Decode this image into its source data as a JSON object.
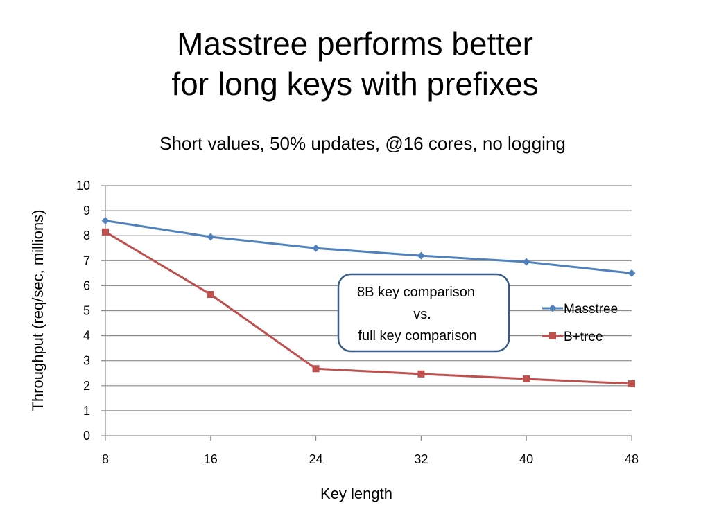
{
  "slide": {
    "title_line1": "Masstree performs better",
    "title_line2": "for long keys with prefixes"
  },
  "chart_data": {
    "type": "line",
    "title": "Short values, 50% updates, @16 cores, no logging",
    "xlabel": "Key length",
    "ylabel": "Throughput (req/sec, millions)",
    "x": [
      8,
      16,
      24,
      32,
      40,
      48
    ],
    "xlim": [
      8,
      48
    ],
    "ylim": [
      0,
      10
    ],
    "yticks": [
      0,
      1,
      2,
      3,
      4,
      5,
      6,
      7,
      8,
      9,
      10
    ],
    "grid": true,
    "legend_position": "right",
    "series": [
      {
        "name": "Masstree",
        "values": [
          8.6,
          7.95,
          7.5,
          7.2,
          6.95,
          6.5
        ],
        "color": "#4f81bd",
        "marker": "diamond"
      },
      {
        "name": "B+tree",
        "values": [
          8.15,
          5.65,
          2.68,
          2.47,
          2.27,
          2.08
        ],
        "color": "#c0504d",
        "marker": "square"
      }
    ],
    "annotation": {
      "lines": [
        "8B key comparison",
        "vs.",
        "full key comparison"
      ],
      "border_color": "#385d8a"
    }
  }
}
